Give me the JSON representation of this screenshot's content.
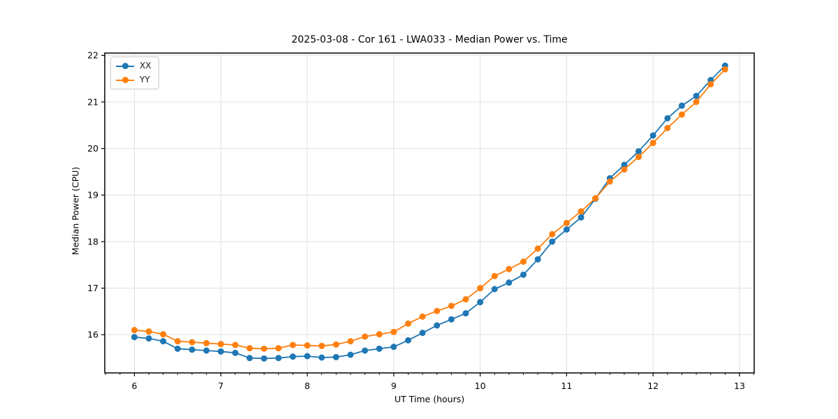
{
  "chart_data": {
    "type": "line",
    "title": "2025-03-08 - Cor 161 - LWA033 - Median Power vs. Time",
    "xlabel": "UT Time (hours)",
    "ylabel": "Median Power (CPU)",
    "xlim": [
      5.657,
      13.17
    ],
    "ylim": [
      15.18,
      22.05
    ],
    "x_major_ticks": [
      6,
      7,
      8,
      9,
      10,
      11,
      12,
      13
    ],
    "y_major_ticks": [
      16,
      17,
      18,
      19,
      20,
      21,
      22
    ],
    "x_minor_step": 0.16667,
    "grid": true,
    "legend_position": "upper-left",
    "x": [
      6.0,
      6.167,
      6.333,
      6.5,
      6.667,
      6.833,
      7.0,
      7.167,
      7.333,
      7.5,
      7.667,
      7.833,
      8.0,
      8.167,
      8.333,
      8.5,
      8.667,
      8.833,
      9.0,
      9.167,
      9.333,
      9.5,
      9.667,
      9.833,
      10.0,
      10.167,
      10.333,
      10.5,
      10.667,
      10.833,
      11.0,
      11.167,
      11.333,
      11.5,
      11.667,
      11.833,
      12.0,
      12.167,
      12.333,
      12.5,
      12.667,
      12.833
    ],
    "series": [
      {
        "name": "XX",
        "color": "#1f77b4",
        "values": [
          15.95,
          15.92,
          15.86,
          15.7,
          15.68,
          15.66,
          15.64,
          15.61,
          15.5,
          15.49,
          15.5,
          15.53,
          15.54,
          15.51,
          15.52,
          15.57,
          15.66,
          15.7,
          15.74,
          15.88,
          16.04,
          16.2,
          16.33,
          16.46,
          16.7,
          16.98,
          17.12,
          17.29,
          17.62,
          18.0,
          18.26,
          18.52,
          18.92,
          19.36,
          19.65,
          19.94,
          20.28,
          20.65,
          20.92,
          21.13,
          21.47,
          21.78
        ]
      },
      {
        "name": "YY",
        "color": "#ff7f0e",
        "values": [
          16.1,
          16.07,
          16.01,
          15.86,
          15.84,
          15.82,
          15.8,
          15.78,
          15.71,
          15.7,
          15.71,
          15.78,
          15.77,
          15.76,
          15.79,
          15.86,
          15.96,
          16.01,
          16.06,
          16.24,
          16.39,
          16.51,
          16.62,
          16.76,
          17.0,
          17.26,
          17.41,
          17.57,
          17.85,
          18.16,
          18.4,
          18.65,
          18.93,
          19.29,
          19.55,
          19.82,
          20.12,
          20.44,
          20.73,
          21.0,
          21.38,
          21.7
        ]
      }
    ],
    "styles": {
      "grid_color": "#e0e0e0",
      "spine_color": "#000000",
      "tick_color": "#000000",
      "text_color": "#000000",
      "marker_radius": 4.5,
      "line_width": 1.8
    }
  }
}
